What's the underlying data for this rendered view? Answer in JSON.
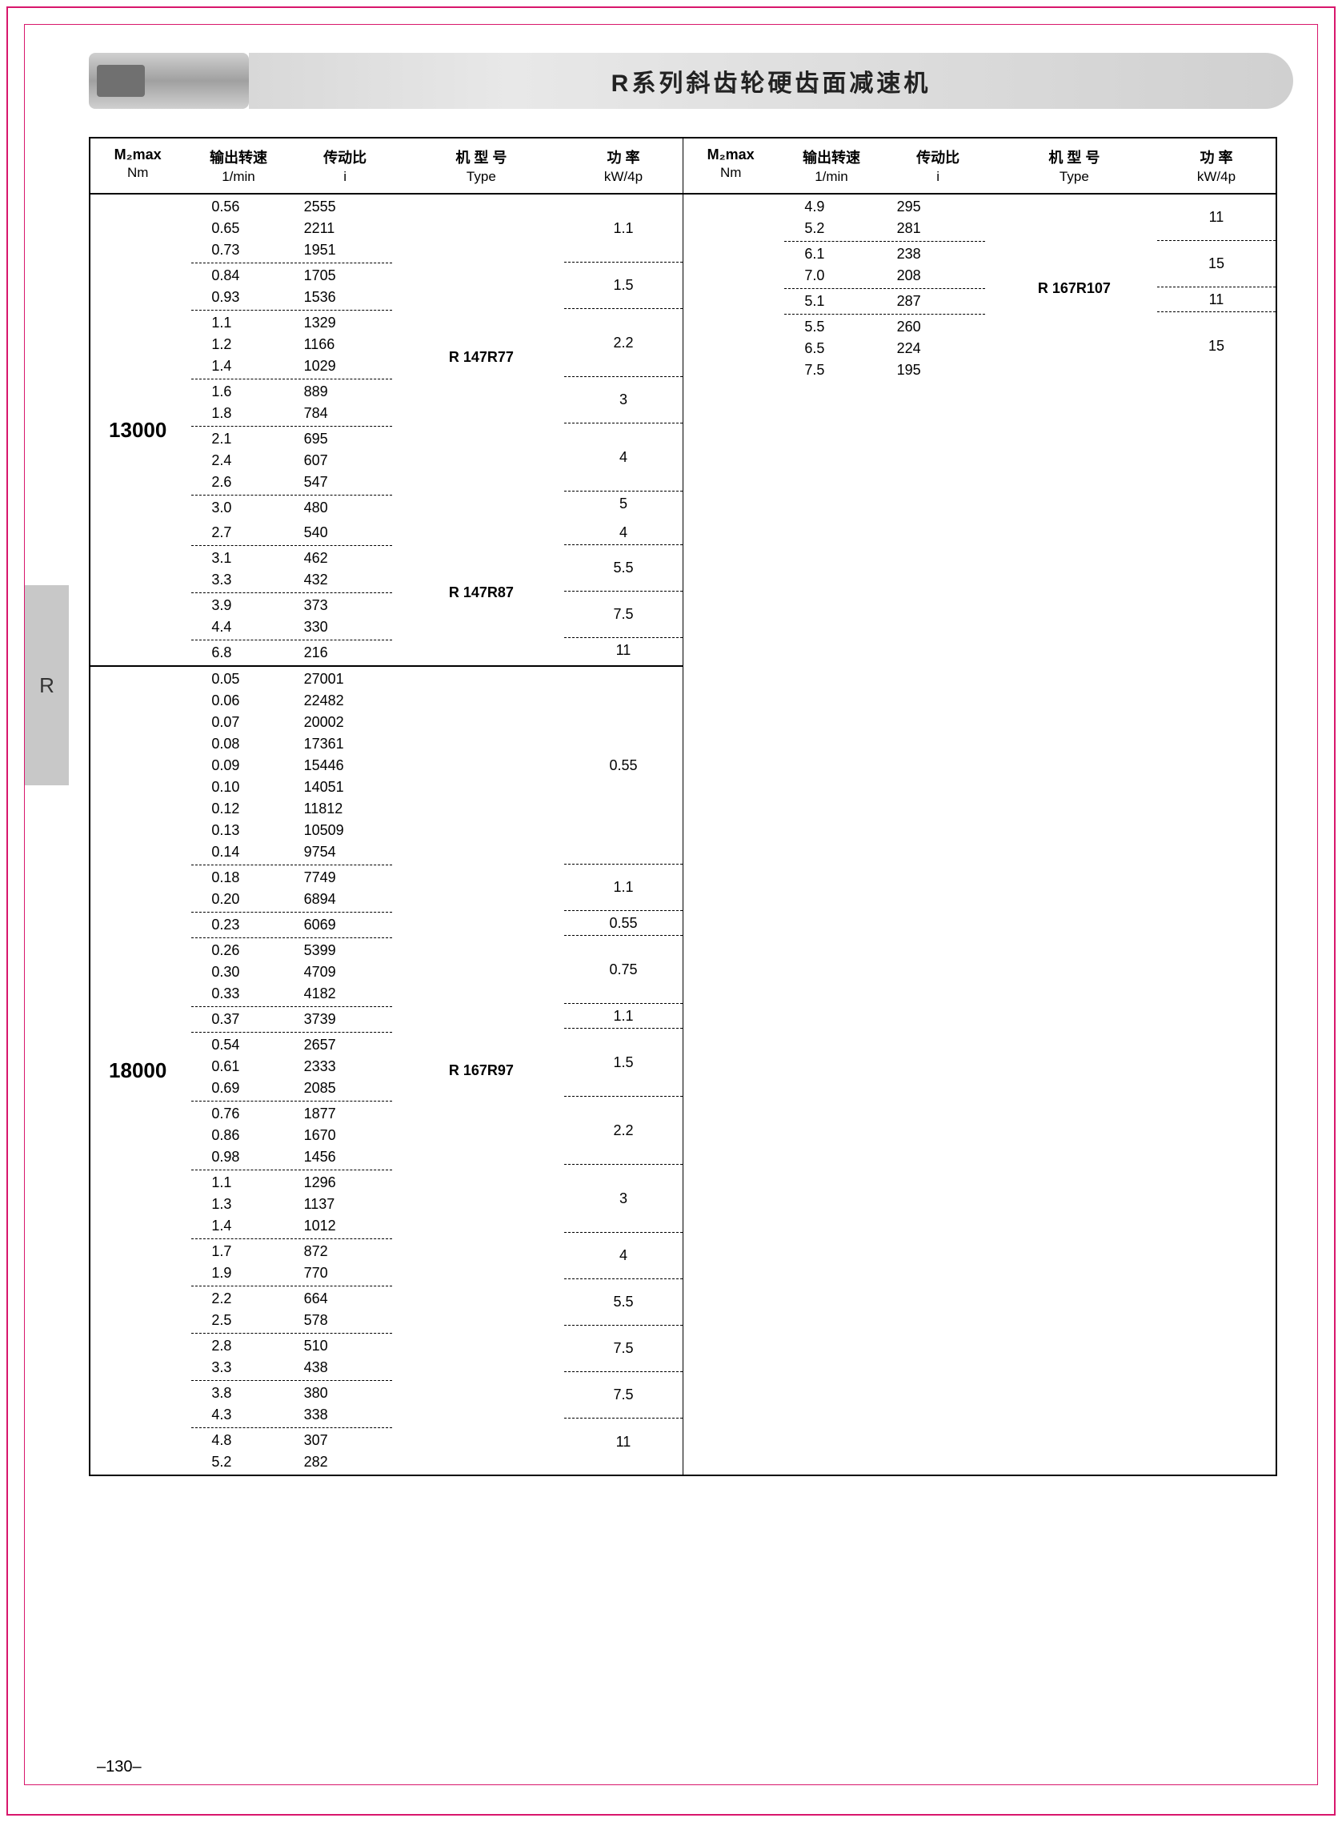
{
  "page_title": "R系列斜齿轮硬齿面减速机",
  "side_label": "R",
  "page_number": "–130–",
  "headers": {
    "m2max": "M₂max",
    "m2max_sub": "Nm",
    "rpm": "输出转速",
    "rpm_sub": "1/min",
    "ratio": "传动比",
    "ratio_sub": "i",
    "type": "机 型 号",
    "type_sub": "Type",
    "power": "功 率",
    "power_sub": "kW/4p"
  },
  "left_blocks": [
    {
      "m2": "13000",
      "type_groups": [
        {
          "type": "R  147R77",
          "kw_groups": [
            {
              "kw": "1.1",
              "pairs": [
                [
                  "0.56",
                  "2555"
                ],
                [
                  "0.65",
                  "2211"
                ],
                [
                  "0.73",
                  "1951"
                ]
              ]
            },
            {
              "kw": "1.5",
              "pairs": [
                [
                  "0.84",
                  "1705"
                ],
                [
                  "0.93",
                  "1536"
                ]
              ]
            },
            {
              "kw": "2.2",
              "pairs": [
                [
                  "1.1",
                  "1329"
                ],
                [
                  "1.2",
                  "1166"
                ],
                [
                  "1.4",
                  "1029"
                ]
              ]
            },
            {
              "kw": "3",
              "pairs": [
                [
                  "1.6",
                  "889"
                ],
                [
                  "1.8",
                  "784"
                ]
              ]
            },
            {
              "kw": "4",
              "pairs": [
                [
                  "2.1",
                  "695"
                ],
                [
                  "2.4",
                  "607"
                ],
                [
                  "2.6",
                  "547"
                ]
              ]
            },
            {
              "kw": "5",
              "pairs": [
                [
                  "3.0",
                  "480"
                ]
              ]
            }
          ]
        },
        {
          "type": "R  147R87",
          "kw_groups": [
            {
              "kw": "4",
              "pairs": [
                [
                  "2.7",
                  "540"
                ]
              ]
            },
            {
              "kw": "5.5",
              "pairs": [
                [
                  "3.1",
                  "462"
                ],
                [
                  "3.3",
                  "432"
                ]
              ]
            },
            {
              "kw": "7.5",
              "pairs": [
                [
                  "3.9",
                  "373"
                ],
                [
                  "4.4",
                  "330"
                ]
              ]
            },
            {
              "kw": "11",
              "pairs": [
                [
                  "6.8",
                  "216"
                ]
              ]
            }
          ]
        }
      ]
    },
    {
      "m2": "18000",
      "type_groups": [
        {
          "type": "R  167R97",
          "kw_groups": [
            {
              "kw": "0.55",
              "pairs": [
                [
                  "0.05",
                  "27001"
                ],
                [
                  "0.06",
                  "22482"
                ],
                [
                  "0.07",
                  "20002"
                ],
                [
                  "0.08",
                  "17361"
                ],
                [
                  "0.09",
                  "15446"
                ],
                [
                  "0.10",
                  "14051"
                ],
                [
                  "0.12",
                  "11812"
                ],
                [
                  "0.13",
                  "10509"
                ],
                [
                  "0.14",
                  "9754"
                ]
              ]
            },
            {
              "kw": "1.1",
              "pairs": [
                [
                  "0.18",
                  "7749"
                ],
                [
                  "0.20",
                  "6894"
                ]
              ]
            },
            {
              "kw": "0.55",
              "pairs": [
                [
                  "0.23",
                  "6069"
                ]
              ]
            },
            {
              "kw": "0.75",
              "pairs": [
                [
                  "0.26",
                  "5399"
                ],
                [
                  "0.30",
                  "4709"
                ],
                [
                  "0.33",
                  "4182"
                ]
              ]
            },
            {
              "kw": "1.1",
              "pairs": [
                [
                  "0.37",
                  "3739"
                ]
              ]
            },
            {
              "kw": "1.5",
              "pairs": [
                [
                  "0.54",
                  "2657"
                ],
                [
                  "0.61",
                  "2333"
                ],
                [
                  "0.69",
                  "2085"
                ]
              ]
            },
            {
              "kw": "2.2",
              "pairs": [
                [
                  "0.76",
                  "1877"
                ],
                [
                  "0.86",
                  "1670"
                ],
                [
                  "0.98",
                  "1456"
                ]
              ]
            },
            {
              "kw": "3",
              "pairs": [
                [
                  "1.1",
                  "1296"
                ],
                [
                  "1.3",
                  "1137"
                ],
                [
                  "1.4",
                  "1012"
                ]
              ]
            },
            {
              "kw": "4",
              "pairs": [
                [
                  "1.7",
                  "872"
                ],
                [
                  "1.9",
                  "770"
                ]
              ]
            },
            {
              "kw": "5.5",
              "pairs": [
                [
                  "2.2",
                  "664"
                ],
                [
                  "2.5",
                  "578"
                ]
              ]
            },
            {
              "kw": "7.5",
              "pairs": [
                [
                  "2.8",
                  "510"
                ],
                [
                  "3.3",
                  "438"
                ]
              ]
            },
            {
              "kw": "7.5",
              "pairs": [
                [
                  "3.8",
                  "380"
                ],
                [
                  "4.3",
                  "338"
                ]
              ]
            },
            {
              "kw": "11",
              "pairs": [
                [
                  "4.8",
                  "307"
                ],
                [
                  "5.2",
                  "282"
                ]
              ]
            }
          ]
        }
      ]
    }
  ],
  "right_blocks": [
    {
      "m2": "",
      "type_groups": [
        {
          "type": "R  167R107",
          "kw_groups": [
            {
              "kw": "11",
              "pairs": [
                [
                  "4.9",
                  "295"
                ],
                [
                  "5.2",
                  "281"
                ]
              ]
            },
            {
              "kw": "15",
              "pairs": [
                [
                  "6.1",
                  "238"
                ],
                [
                  "7.0",
                  "208"
                ]
              ]
            },
            {
              "kw": "11",
              "pairs": [
                [
                  "5.1",
                  "287"
                ]
              ]
            },
            {
              "kw": "15",
              "pairs": [
                [
                  "5.5",
                  "260"
                ],
                [
                  "6.5",
                  "224"
                ],
                [
                  "7.5",
                  "195"
                ]
              ]
            }
          ]
        }
      ]
    }
  ],
  "colors": {
    "border": "#d8176c",
    "header_bg": "#d0d0d0",
    "side_bg": "#c8c8c8",
    "text": "#000000"
  },
  "fonts": {
    "title_size": 30,
    "body_size": 18,
    "m2_size": 26
  }
}
